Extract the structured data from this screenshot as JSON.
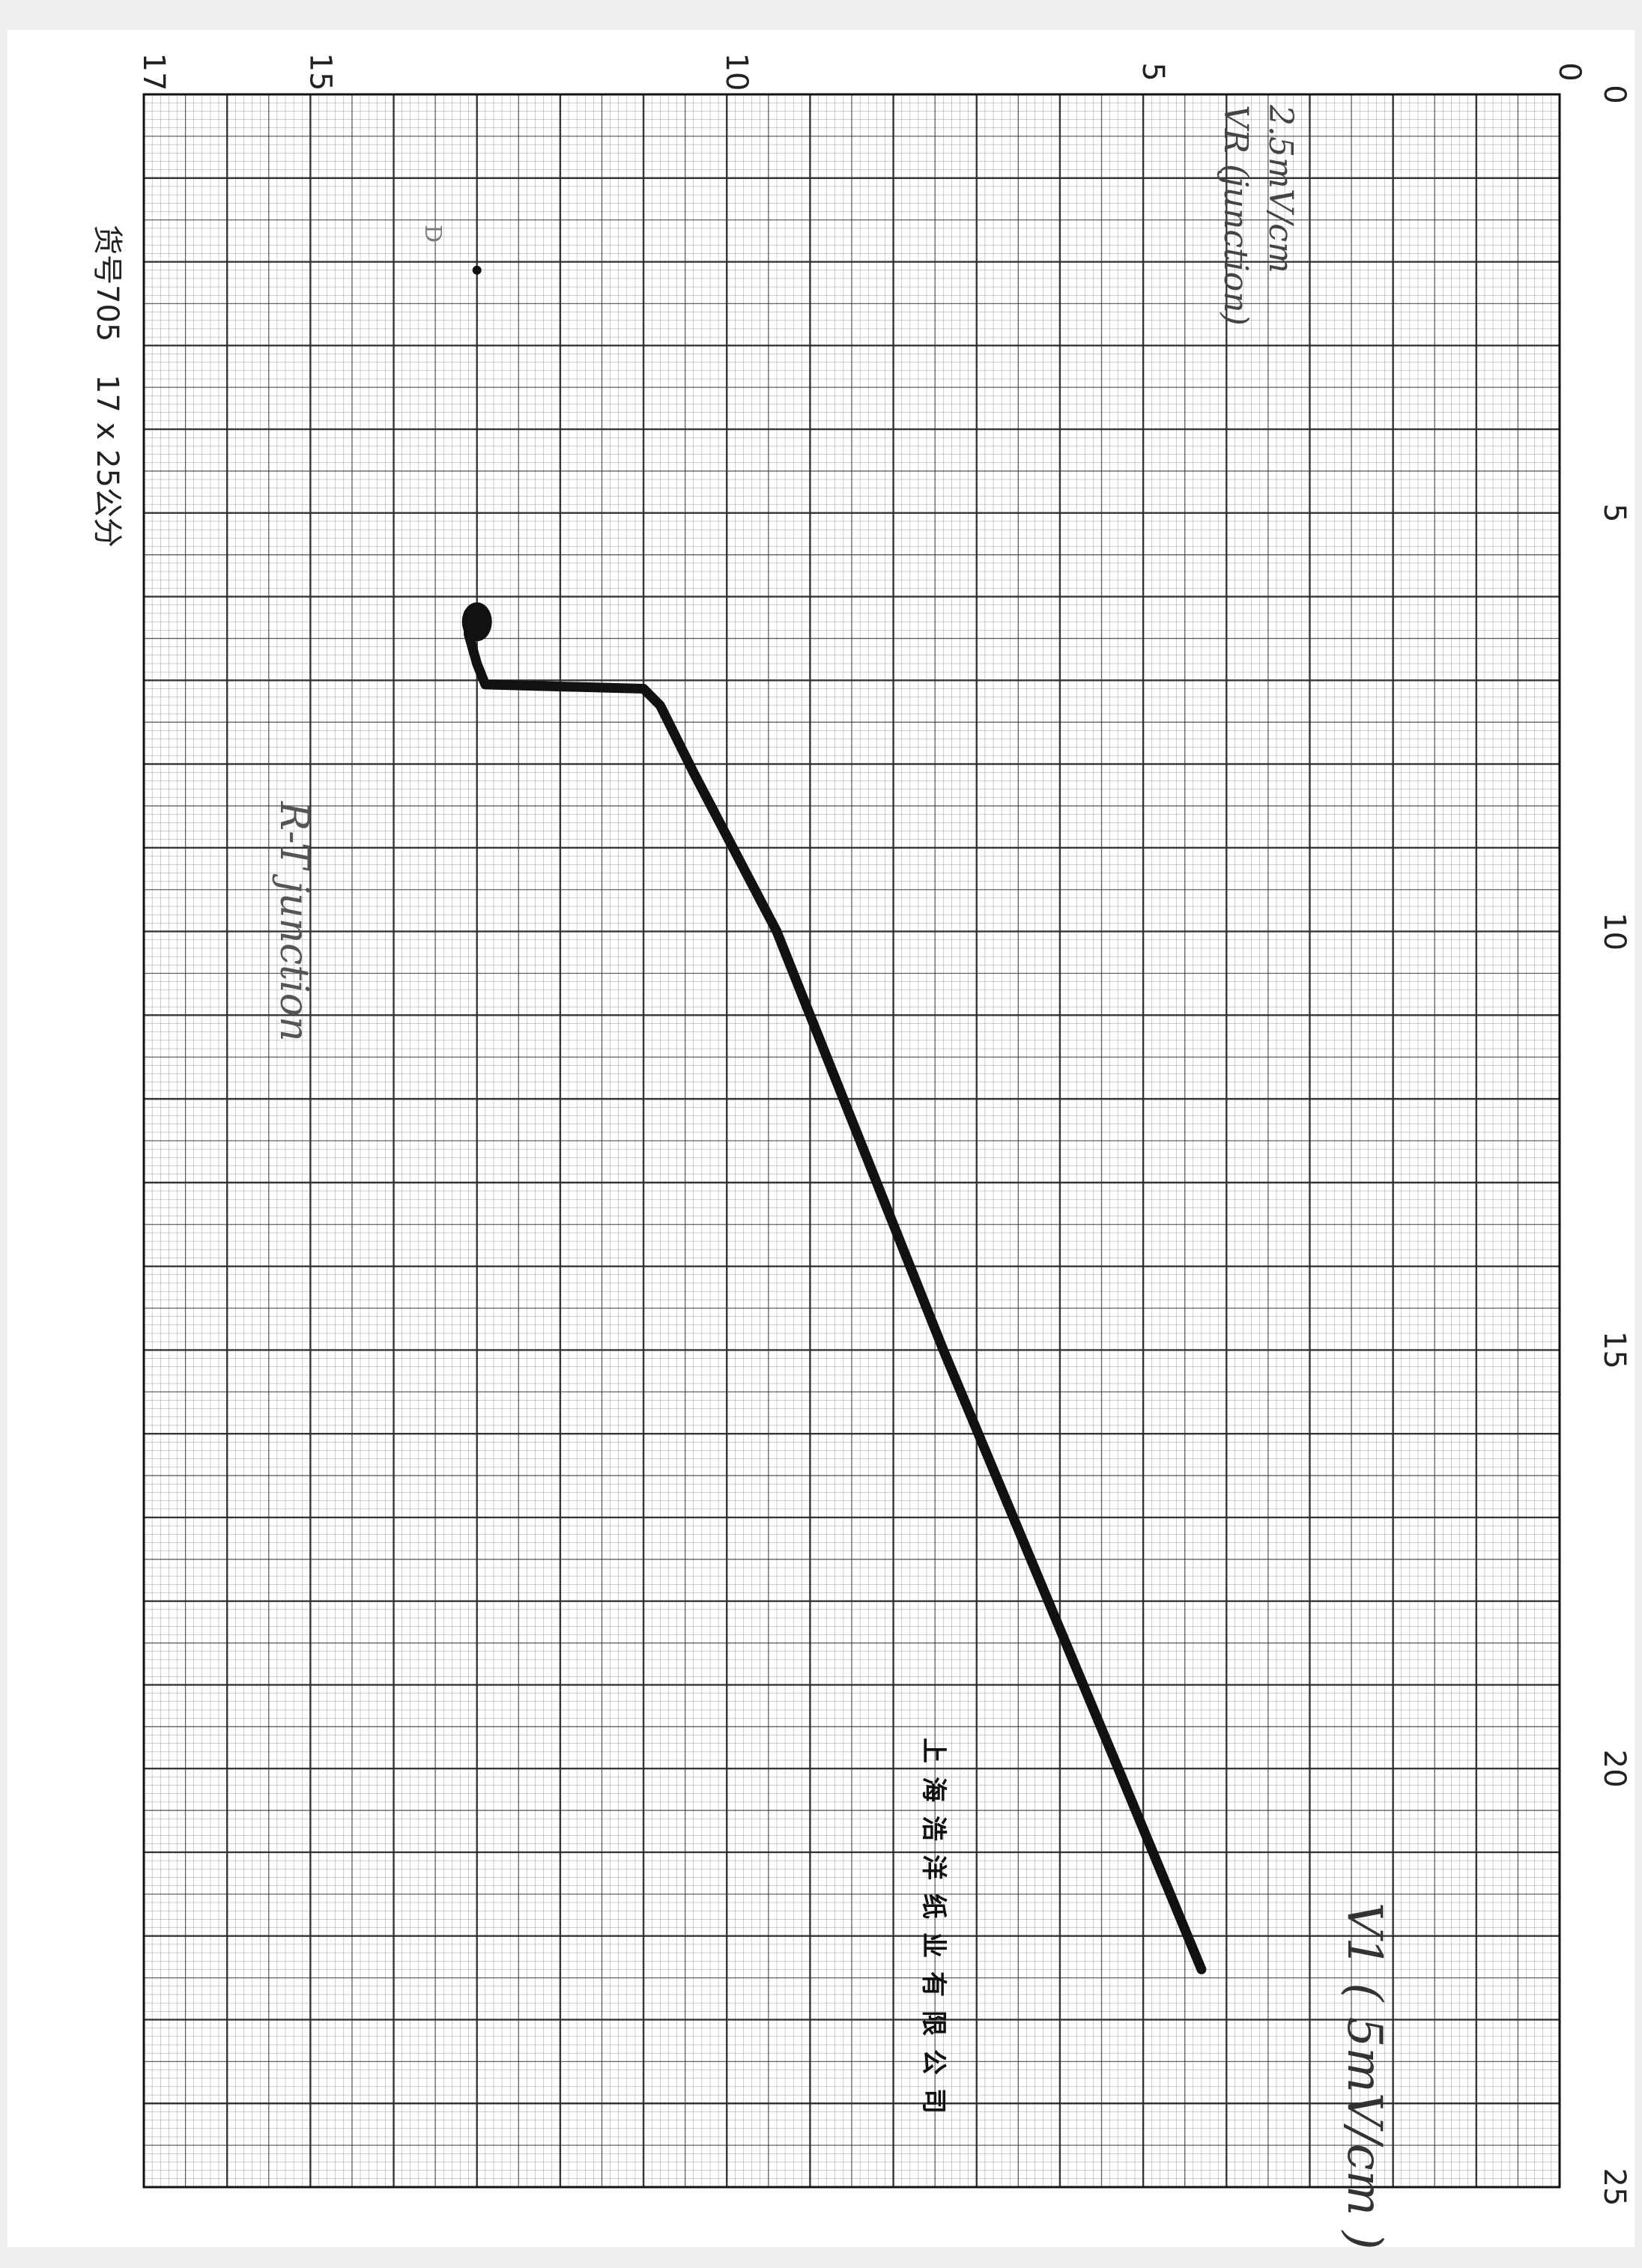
{
  "paper": {
    "product_code": "货号705",
    "size_label": "17 x 25公分",
    "maker": "上海浩洋纸业有限公司",
    "grid_color": "#2b2b2b",
    "paper_color": "#ffffff",
    "ink_color": "#111111"
  },
  "annotations": {
    "y_axis_note_line1": "2.5mV/cm",
    "y_axis_note_line2": "VR (junction)",
    "x_axis_note": "V1 ( 5mV/cm )",
    "curve_label": "R-T  junction",
    "small_mark": "D"
  },
  "chart_data": {
    "type": "line",
    "title": "",
    "xlabel": "V1 ( 5mV/cm )",
    "ylabel": "VR (junction)",
    "xlim": [
      0,
      25
    ],
    "ylim": [
      0,
      17
    ],
    "x_ticks": [
      0,
      5,
      10,
      15,
      20,
      25
    ],
    "y_ticks": [
      0,
      5,
      10,
      15,
      17
    ],
    "x_tick_labels": [
      "0",
      "5",
      "10",
      "15",
      "20",
      "25"
    ],
    "y_tick_labels": [
      "0",
      "5",
      "10",
      "15",
      "17"
    ],
    "grid": true,
    "series": [
      {
        "values": [
          {
            "x": 6.2,
            "y": 13.1
          },
          {
            "x": 6.45,
            "y": 13.1
          },
          {
            "x": 6.8,
            "y": 13.0
          },
          {
            "x": 7.05,
            "y": 12.9
          },
          {
            "x": 7.1,
            "y": 11.0
          },
          {
            "x": 7.3,
            "y": 10.8
          },
          {
            "x": 8.1,
            "y": 10.4
          },
          {
            "x": 10.0,
            "y": 9.4
          },
          {
            "x": 15.0,
            "y": 7.4
          },
          {
            "x": 20.0,
            "y": 5.3
          },
          {
            "x": 22.4,
            "y": 4.3
          }
        ]
      }
    ],
    "blob_point": {
      "x": 6.3,
      "y": 13.0
    },
    "isolated_dot": {
      "x": 2.1,
      "y": 13.0
    }
  }
}
